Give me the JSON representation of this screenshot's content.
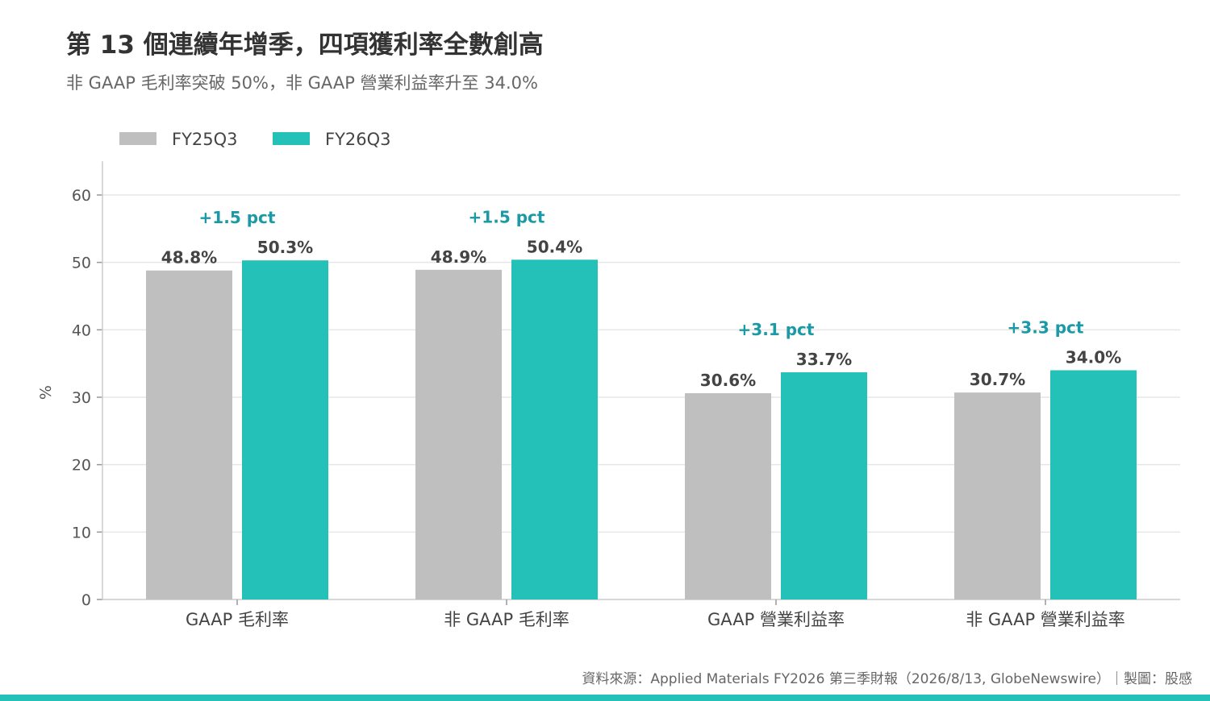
{
  "title": "第 13 個連續年增季，四項獲利率全數創高",
  "subtitle": "非 GAAP 毛利率突破 50%，非 GAAP 營業利益率升至 34.0%",
  "source": "資料來源：Applied Materials FY2026 第三季財報（2026/8/13, GlobeNewswire）｜製圖：股感",
  "colors": {
    "FY25Q3": "#bfbfbf",
    "FY26Q3": "#24c1b8",
    "delta": "#1a9aa6",
    "grid": "#e6e6e6",
    "axis": "#cccccc",
    "text": "#444444",
    "accent_bar": "#24c1b8"
  },
  "chart_data": {
    "type": "bar",
    "categories": [
      "GAAP 毛利率",
      "非 GAAP 毛利率",
      "GAAP 營業利益率",
      "非 GAAP 營業利益率"
    ],
    "series": [
      {
        "name": "FY25Q3",
        "values": [
          48.8,
          48.9,
          30.6,
          30.7
        ],
        "labels": [
          "48.8%",
          "48.9%",
          "30.6%",
          "30.7%"
        ]
      },
      {
        "name": "FY26Q3",
        "values": [
          50.3,
          50.4,
          33.7,
          34.0
        ],
        "labels": [
          "50.3%",
          "50.4%",
          "33.7%",
          "34.0%"
        ]
      }
    ],
    "deltas": [
      "+1.5 pct",
      "+1.5 pct",
      "+3.1 pct",
      "+3.3 pct"
    ],
    "ylabel": "%",
    "ylim": [
      0,
      65
    ],
    "yticks": [
      0,
      10,
      20,
      30,
      40,
      50,
      60
    ],
    "grid": true,
    "legend": "top-left"
  }
}
